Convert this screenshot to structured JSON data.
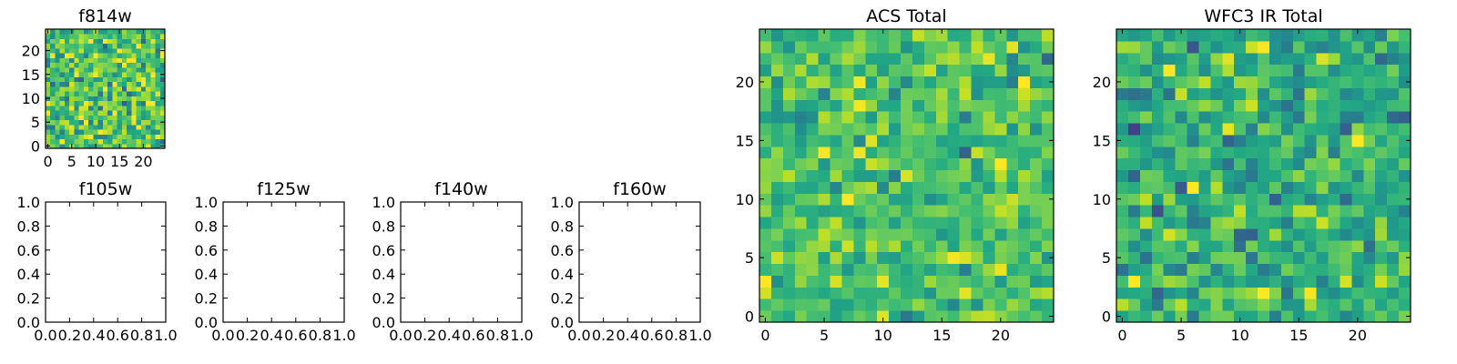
{
  "figure": {
    "background": "#ffffff"
  },
  "colormap": {
    "name": "viridis",
    "visible_range_colors": [
      "#440154",
      "#31688e",
      "#35b779",
      "#8fd744",
      "#fde725"
    ]
  },
  "chart_data": [
    {
      "id": "f814w",
      "type": "heatmap",
      "title": "f814w",
      "image_size": [
        25,
        25
      ],
      "xlim": [
        -0.5,
        24.5
      ],
      "ylim": [
        -0.5,
        24.5
      ],
      "xticks": [
        "0",
        "5",
        "10",
        "15",
        "20"
      ],
      "yticks": [
        "0",
        "5",
        "10",
        "15",
        "20"
      ],
      "tick_values": [
        0,
        5,
        10,
        15,
        20
      ],
      "values_note": "25x25 random pixel values (mostly mid-high viridis range)"
    },
    {
      "id": "f105w",
      "type": "heatmap",
      "title": "f105w",
      "empty": true,
      "xlim": [
        0,
        1
      ],
      "ylim": [
        0,
        1
      ],
      "xticks": [
        "0.0",
        "0.2",
        "0.4",
        "0.6",
        "0.8",
        "1.0"
      ],
      "yticks": [
        "0.0",
        "0.2",
        "0.4",
        "0.6",
        "0.8",
        "1.0"
      ],
      "tick_values": [
        0,
        0.2,
        0.4,
        0.6,
        0.8,
        1.0
      ]
    },
    {
      "id": "f125w",
      "type": "heatmap",
      "title": "f125w",
      "empty": true,
      "xlim": [
        0,
        1
      ],
      "ylim": [
        0,
        1
      ],
      "xticks": [
        "0.0",
        "0.2",
        "0.4",
        "0.6",
        "0.8",
        "1.0"
      ],
      "yticks": [
        "0.0",
        "0.2",
        "0.4",
        "0.6",
        "0.8",
        "1.0"
      ],
      "tick_values": [
        0,
        0.2,
        0.4,
        0.6,
        0.8,
        1.0
      ]
    },
    {
      "id": "f140w",
      "type": "heatmap",
      "title": "f140w",
      "empty": true,
      "xlim": [
        0,
        1
      ],
      "ylim": [
        0,
        1
      ],
      "xticks": [
        "0.0",
        "0.2",
        "0.4",
        "0.6",
        "0.8",
        "1.0"
      ],
      "yticks": [
        "0.0",
        "0.2",
        "0.4",
        "0.6",
        "0.8",
        "1.0"
      ],
      "tick_values": [
        0,
        0.2,
        0.4,
        0.6,
        0.8,
        1.0
      ]
    },
    {
      "id": "f160w",
      "type": "heatmap",
      "title": "f160w",
      "empty": true,
      "xlim": [
        0,
        1
      ],
      "ylim": [
        0,
        1
      ],
      "xticks": [
        "0.0",
        "0.2",
        "0.4",
        "0.6",
        "0.8",
        "1.0"
      ],
      "yticks": [
        "0.0",
        "0.2",
        "0.4",
        "0.6",
        "0.8",
        "1.0"
      ],
      "tick_values": [
        0,
        0.2,
        0.4,
        0.6,
        0.8,
        1.0
      ]
    },
    {
      "id": "acs_total",
      "type": "heatmap",
      "title": "ACS Total",
      "image_size": [
        25,
        25
      ],
      "xlim": [
        -0.5,
        24.5
      ],
      "ylim": [
        -0.5,
        24.5
      ],
      "xticks": [
        "0",
        "5",
        "10",
        "15",
        "20"
      ],
      "yticks": [
        "0",
        "5",
        "10",
        "15",
        "20"
      ],
      "tick_values": [
        0,
        5,
        10,
        15,
        20
      ],
      "values_note": "25x25 random pixel values (mostly green-yellow viridis range)"
    },
    {
      "id": "wfc3_ir_total",
      "type": "heatmap",
      "title": "WFC3 IR Total",
      "image_size": [
        25,
        25
      ],
      "xlim": [
        -0.5,
        24.5
      ],
      "ylim": [
        -0.5,
        24.5
      ],
      "xticks": [
        "0",
        "5",
        "10",
        "15",
        "20"
      ],
      "yticks": [
        "0",
        "5",
        "10",
        "15",
        "20"
      ],
      "tick_values": [
        0,
        5,
        10,
        15,
        20
      ],
      "values_note": "25x25 random pixel values (mostly green viridis range)"
    }
  ]
}
